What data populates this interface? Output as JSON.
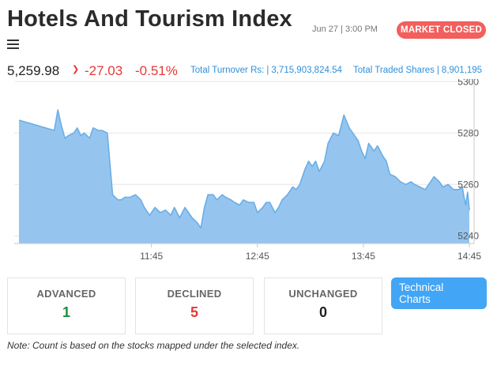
{
  "header": {
    "title": "Hotels And Tourism Index",
    "datetime": "Jun 27 | 3:00 PM",
    "market_status": "MARKET CLOSED"
  },
  "quote": {
    "price": "5,259.98",
    "change": "-27.03",
    "change_pct": "-0.51%",
    "turnover_label": "Total Turnover Rs:",
    "turnover_value": "3,715,903,824.54",
    "shares_label": "Total Traded Shares",
    "shares_value": "8,901,195"
  },
  "colors": {
    "area_fill": "#95c5ef",
    "line": "#6aaee6",
    "negative": "#e53935",
    "positive": "#1e8e3e",
    "accent": "#42a5f5",
    "badge": "#f25f5c"
  },
  "chart_data": {
    "type": "area",
    "title": "",
    "xlabel": "",
    "ylabel": "",
    "x_ticks": [
      "11:45",
      "12:45",
      "13:45",
      "14:45"
    ],
    "y_ticks": [
      5240,
      5260,
      5280,
      5300
    ],
    "ylim": [
      5237,
      5301
    ],
    "xlim_minutes": [
      630,
      885
    ],
    "grid": "horizontal",
    "y_axis_side": "right",
    "series": [
      {
        "x": [
          630,
          635,
          640,
          645,
          650,
          652,
          654,
          656,
          658,
          661,
          663,
          665,
          667,
          670,
          672,
          675,
          677,
          680,
          683,
          686,
          688,
          690,
          693,
          696,
          699,
          701,
          704,
          707,
          710,
          713,
          716,
          718,
          721,
          724,
          726,
          728,
          731,
          733,
          735,
          737,
          740,
          742,
          745,
          747,
          750,
          752,
          755,
          757,
          760,
          763,
          765,
          768,
          770,
          772,
          775,
          777,
          779,
          782,
          785,
          787,
          789,
          792,
          794,
          796,
          798,
          800,
          803,
          805,
          808,
          811,
          814,
          817,
          819,
          822,
          824,
          826,
          828,
          831,
          833,
          836,
          838,
          840,
          843,
          846,
          849,
          852,
          854,
          857,
          860,
          862,
          865,
          868,
          870,
          873,
          876,
          879,
          881,
          882,
          883,
          884,
          885
        ],
        "y": [
          5285,
          5284,
          5283,
          5282,
          5281,
          5289,
          5283,
          5278,
          5279,
          5280,
          5282,
          5279,
          5280,
          5278,
          5282,
          5281,
          5281,
          5280,
          5256,
          5254,
          5254,
          5255,
          5255,
          5256,
          5254,
          5251,
          5248,
          5251,
          5249,
          5250,
          5248,
          5251,
          5247,
          5251,
          5249,
          5247,
          5245,
          5243,
          5251,
          5256,
          5256,
          5254,
          5256,
          5255,
          5254,
          5253,
          5252,
          5254,
          5253,
          5253,
          5249,
          5251,
          5253,
          5253,
          5249,
          5251,
          5254,
          5256,
          5259,
          5258,
          5260,
          5266,
          5269,
          5267,
          5269,
          5265,
          5269,
          5276,
          5280,
          5279,
          5287,
          5282,
          5280,
          5277,
          5273,
          5270,
          5276,
          5273,
          5275,
          5271,
          5269,
          5264,
          5263,
          5261,
          5260,
          5261,
          5260,
          5259,
          5258,
          5260,
          5263,
          5261,
          5259,
          5260,
          5258,
          5258,
          5259,
          5255,
          5252,
          5257,
          5250
        ]
      }
    ]
  },
  "summary": [
    {
      "label": "ADVANCED",
      "value": "1",
      "tone": "positive"
    },
    {
      "label": "DECLINED",
      "value": "5",
      "tone": "negative"
    },
    {
      "label": "UNCHANGED",
      "value": "0",
      "tone": "neutral"
    }
  ],
  "technical_button": {
    "line1": "Technical",
    "line2": "Charts"
  },
  "note": "Note: Count is based on the stocks mapped under the selected index."
}
